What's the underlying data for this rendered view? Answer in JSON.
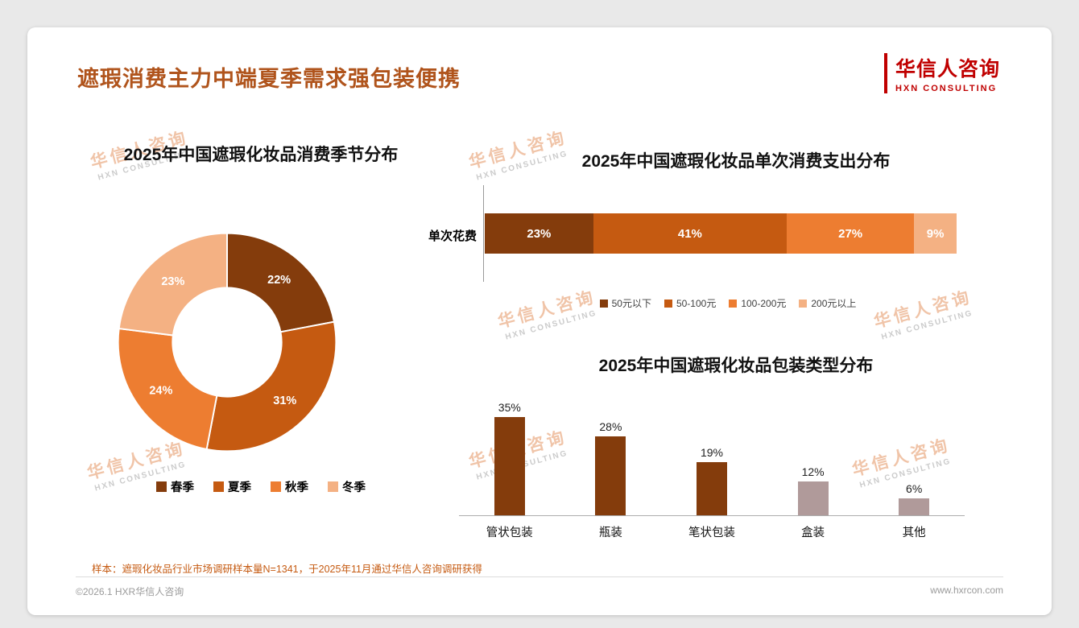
{
  "header": {
    "title": "遮瑕消费主力中端夏季需求强包装便携",
    "logo_cn": "华信人咨询",
    "logo_en": "HXN CONSULTING"
  },
  "watermark": {
    "line1": "华信人咨询",
    "line2": "HXN CONSULTING"
  },
  "footnote": "样本：遮瑕化妆品行业市场调研样本量N=1341，于2025年11月通过华信人咨询调研获得",
  "footer": {
    "left": "©2026.1 HXR华信人咨询",
    "right": "www.hxrcon.com"
  },
  "chart_data": [
    {
      "type": "pie",
      "donut": true,
      "title": "2025年中国遮瑕化妆品消费季节分布",
      "labels": [
        "春季",
        "夏季",
        "秋季",
        "冬季"
      ],
      "values": [
        22,
        31,
        24,
        23
      ],
      "colors": [
        "#843C0C",
        "#C55A11",
        "#ED7D31",
        "#F4B183"
      ],
      "legend_position": "bottom"
    },
    {
      "type": "bar",
      "subtype": "stacked-horizontal",
      "title": "2025年中国遮瑕化妆品单次消费支出分布",
      "axis_label": "单次花费",
      "categories": [
        "50元以下",
        "50-100元",
        "100-200元",
        "200元以上"
      ],
      "values": [
        23,
        41,
        27,
        9
      ],
      "colors": [
        "#843C0C",
        "#C55A11",
        "#ED7D31",
        "#F4B183"
      ],
      "legend_position": "bottom"
    },
    {
      "type": "bar",
      "title": "2025年中国遮瑕化妆品包装类型分布",
      "categories": [
        "管状包装",
        "瓶装",
        "笔状包装",
        "盒装",
        "其他"
      ],
      "values": [
        35,
        28,
        19,
        12,
        6
      ],
      "colors": [
        "#843C0C",
        "#843C0C",
        "#843C0C",
        "#B09A9A",
        "#B09A9A"
      ],
      "ylim": [
        0,
        40
      ],
      "grid": false
    }
  ]
}
